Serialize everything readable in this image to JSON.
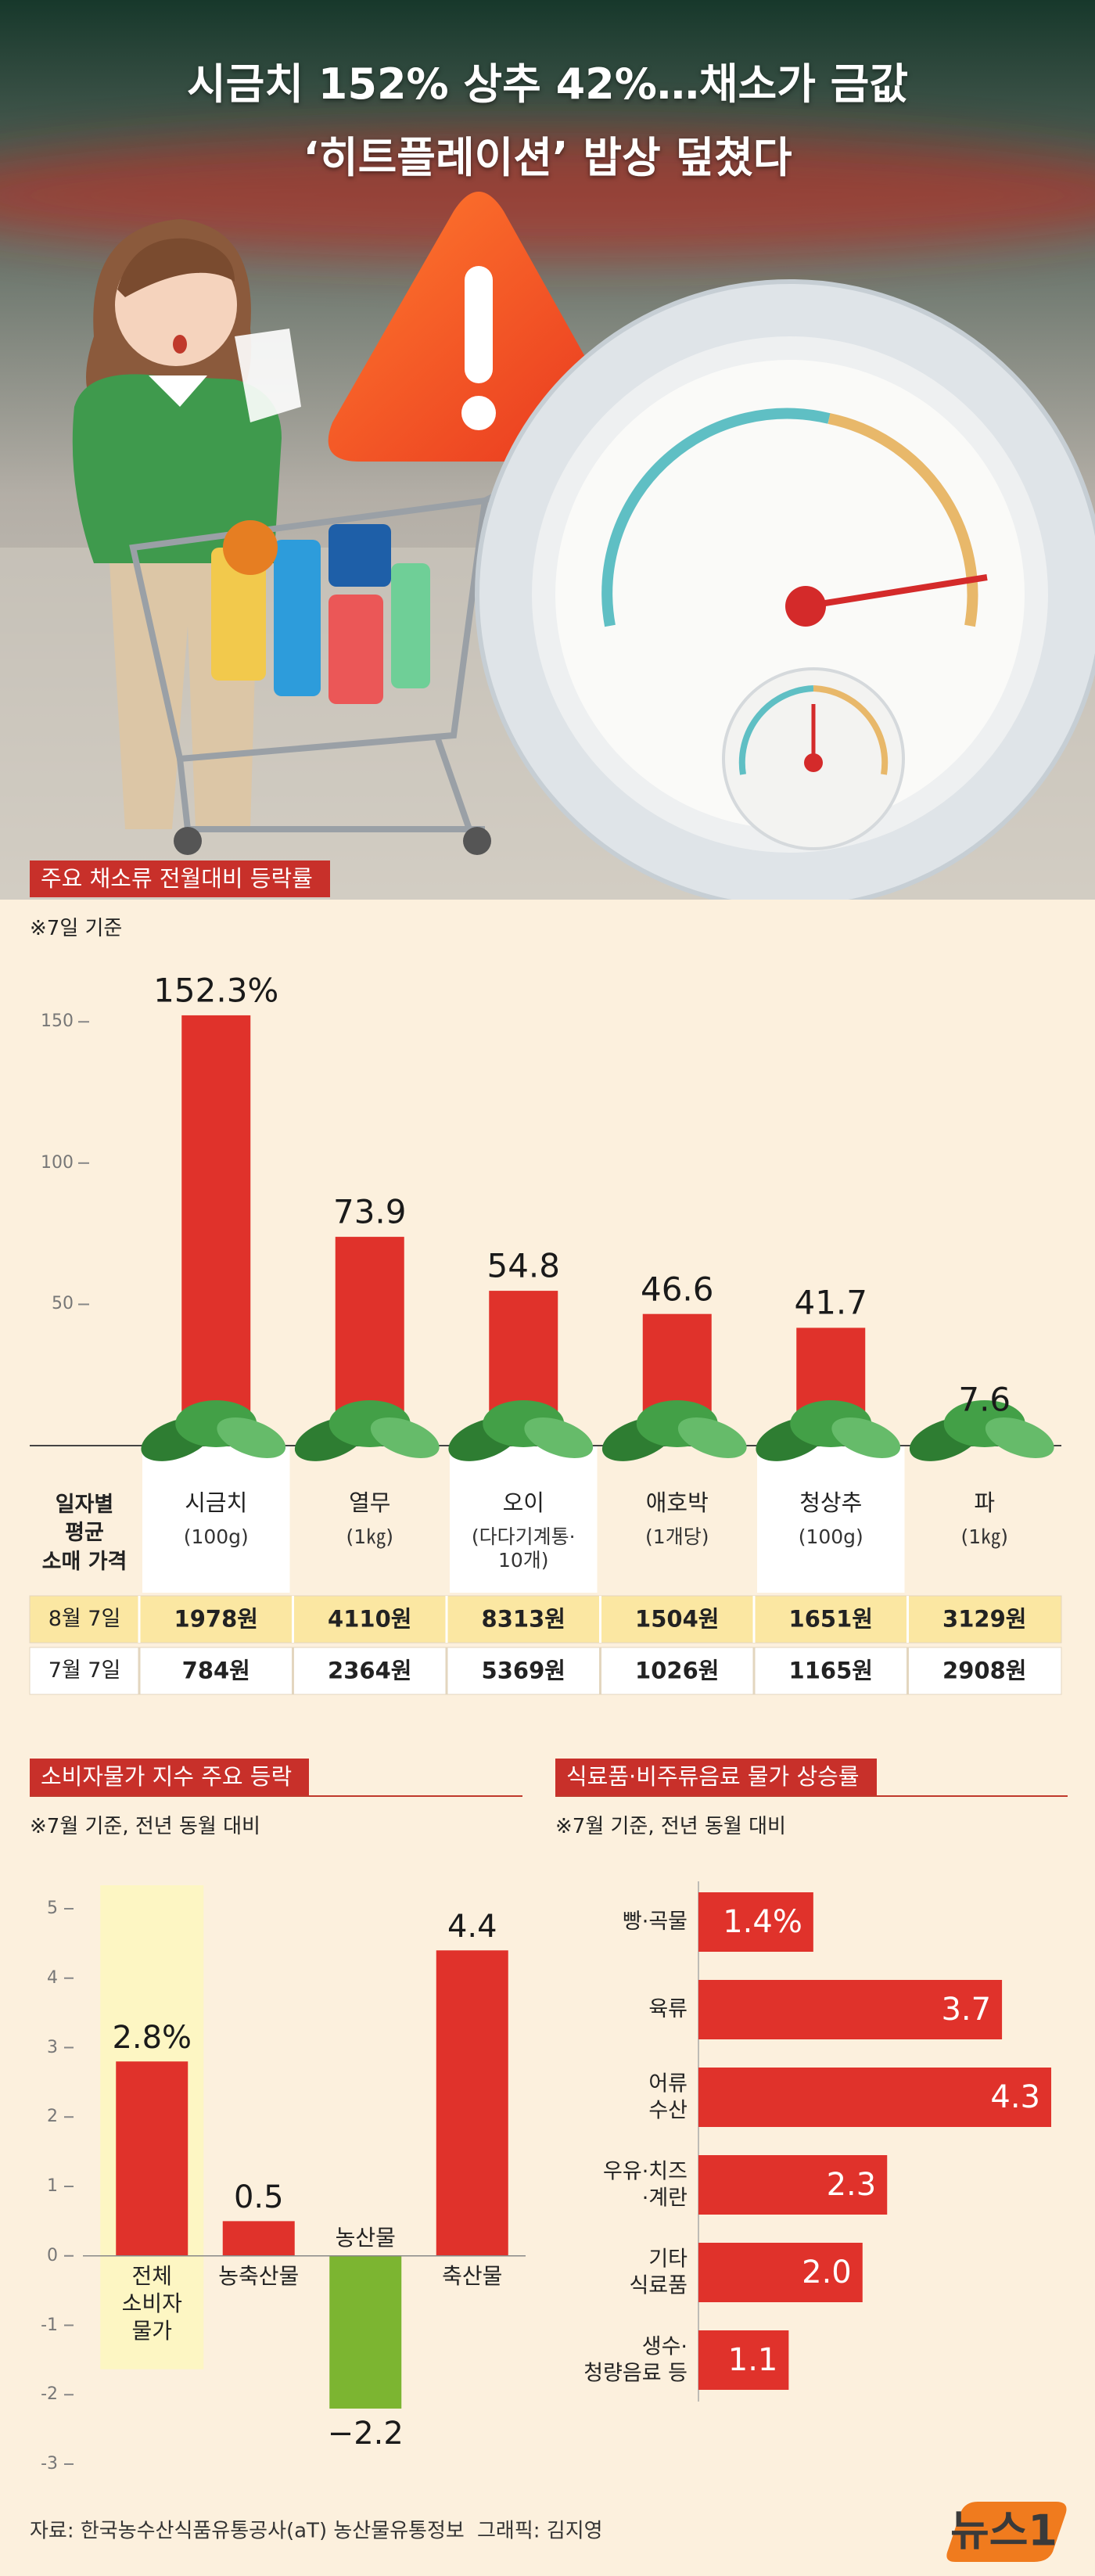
{
  "title": [
    "시금치 152% 상추 42%…채소가 금값",
    "‘히트플레이션’ 밥상 덮쳤다"
  ],
  "chart_data": [
    {
      "type": "bar",
      "title": "주요 채소류 전월대비 등락률",
      "subtitle": "※7일 기준",
      "categories": [
        "시금치",
        "열무",
        "오이",
        "애호박",
        "청상추",
        "파"
      ],
      "values": [
        152.3,
        73.9,
        54.8,
        46.6,
        41.7,
        7.6
      ],
      "value_labels": [
        "152.3%",
        "73.9",
        "54.8",
        "46.6",
        "41.7",
        "7.6"
      ],
      "color": "#e0322b",
      "ylim": [
        0,
        170
      ],
      "yticks": [
        50,
        100,
        150
      ],
      "grid": false
    },
    {
      "type": "bar",
      "title": "소비자물가 지수 주요 등락",
      "subtitle": "※7월 기준, 전년 동월 대비",
      "categories": [
        "전체\n소비자\n물가",
        "농축산물",
        "농산물",
        "축산물"
      ],
      "values": [
        2.8,
        0.5,
        -2.2,
        4.4
      ],
      "value_labels": [
        "2.8%",
        "0.5",
        "−2.2",
        "4.4"
      ],
      "colors": [
        "#e0322b",
        "#e0322b",
        "#7cb531",
        "#e0322b"
      ],
      "ylim": [
        -3,
        5
      ],
      "yticks": [
        -3,
        -2,
        -1,
        0,
        1,
        2,
        3,
        4,
        5
      ],
      "grid": false
    },
    {
      "type": "bar",
      "orientation": "horizontal",
      "title": "식료품·비주류음료 물가 상승률",
      "subtitle": "※7월 기준, 전년 동월 대비",
      "categories": [
        "빵·곡물",
        "육류",
        "어류\n수산",
        "우유·치즈\n·계란",
        "기타\n식료품",
        "생수·\n청량음료 등"
      ],
      "values": [
        1.4,
        3.7,
        4.3,
        2.3,
        2.0,
        1.1
      ],
      "value_labels": [
        "1.4%",
        "3.7",
        "4.3",
        "2.3",
        "2.0",
        "1.1"
      ],
      "color": "#e0322b",
      "xlim": [
        0,
        4.5
      ]
    }
  ],
  "table": {
    "header": "일자별\n평균\n소매 가격",
    "units": [
      "(100g)",
      "(1㎏)",
      "(다다기계통·\n10개)",
      "(1개당)",
      "(100g)",
      "(1㎏)"
    ],
    "rows": [
      {
        "label": "8월 7일",
        "cells": [
          "1978원",
          "4110원",
          "8313원",
          "1504원",
          "1651원",
          "3129원"
        ]
      },
      {
        "label": "7월 7일",
        "cells": [
          "784원",
          "2364원",
          "5369원",
          "1026원",
          "1165원",
          "2908원"
        ]
      }
    ]
  },
  "source": "자료: 한국농수산식품유통공사(aT) 농산물유통정보",
  "credit": "그래픽: 김지영",
  "logo": "뉴스1"
}
